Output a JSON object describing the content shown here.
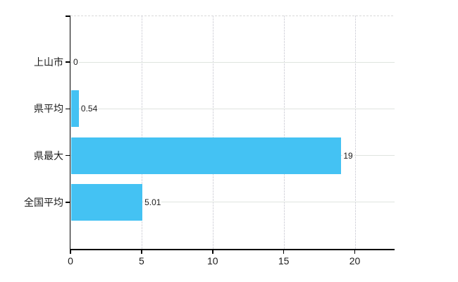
{
  "chart_data": {
    "type": "bar",
    "orientation": "horizontal",
    "title": "",
    "categories": [
      "上山市",
      "県平均",
      "県最大",
      "全国平均"
    ],
    "values": [
      0,
      0.54,
      19,
      5.01
    ],
    "value_labels": [
      "0",
      "0.54",
      "19",
      "5.01"
    ],
    "x_ticks": [
      0,
      5,
      10,
      15,
      20
    ],
    "x_tick_labels": [
      "0",
      "5",
      "10",
      "15",
      "20"
    ],
    "xlim": [
      0,
      22.8
    ],
    "grid": true,
    "legend": false,
    "colors": {
      "bar": "#44c2f3",
      "axis": "#000000",
      "horizontal_gridline": "#dfe4df",
      "vertical_gridline": "#d7d7de",
      "top_border": "#d9d9d9",
      "label_text": "#1c1c1c"
    }
  }
}
